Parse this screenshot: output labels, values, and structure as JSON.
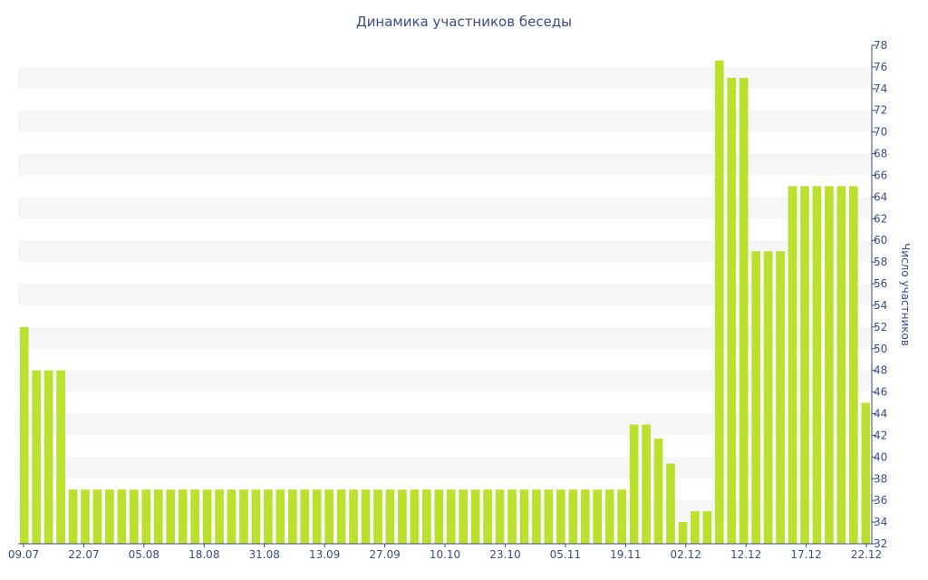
{
  "chart_data": {
    "type": "bar",
    "title": "Динамика участников беседы",
    "ylabel": "Число участников",
    "xlabel": "",
    "ylim": [
      32,
      78
    ],
    "y_ticks": [
      32,
      34,
      36,
      38,
      40,
      42,
      44,
      46,
      48,
      50,
      52,
      54,
      56,
      58,
      60,
      62,
      64,
      66,
      68,
      70,
      72,
      74,
      76,
      78
    ],
    "x_tick_labels": [
      "09.07",
      "22.07",
      "05.08",
      "18.08",
      "31.08",
      "13.09",
      "27.09",
      "10.10",
      "23.10",
      "05.11",
      "19.11",
      "02.12",
      "12.12",
      "17.12",
      "22.12"
    ],
    "values": [
      52,
      48,
      48,
      48,
      37,
      37,
      37,
      37,
      37,
      37,
      37,
      37,
      37,
      37,
      37,
      37,
      37,
      37,
      37,
      37,
      37,
      37,
      37,
      37,
      37,
      37,
      37,
      37,
      37,
      37,
      37,
      37,
      37,
      37,
      37,
      37,
      37,
      37,
      37,
      37,
      37,
      37,
      37,
      37,
      37,
      37,
      37,
      37,
      37,
      37,
      43,
      43,
      41.7,
      39.4,
      34,
      35,
      35,
      76.6,
      75,
      75,
      59,
      59,
      59,
      65,
      65,
      65,
      65,
      65,
      65,
      45
    ],
    "legend": "none",
    "grid": "alternating horizontal bands",
    "colors": {
      "bar": "#bbe02e",
      "text": "#3b4a8c",
      "band": "#f6f6f6"
    }
  }
}
